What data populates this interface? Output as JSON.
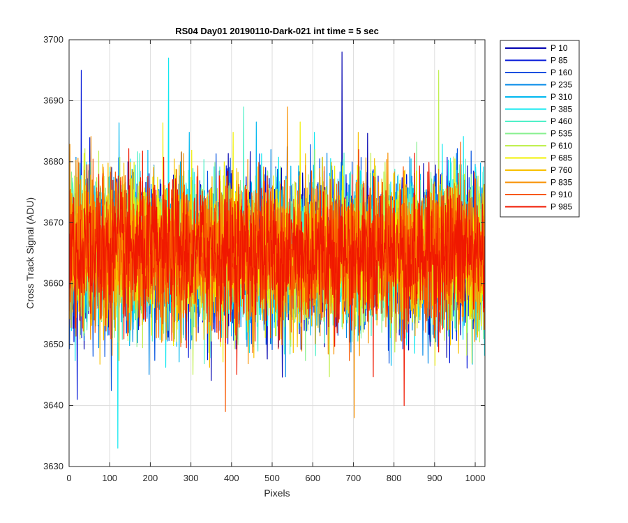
{
  "chart_data": {
    "type": "line",
    "title": "RS04 Day01 20190110-Dark-021 int time = 5 sec",
    "xlabel": "Pixels",
    "ylabel": "Cross Track Signal (ADU)",
    "xlim": [
      0,
      1024
    ],
    "ylim": [
      3630,
      3700
    ],
    "xticks": [
      0,
      100,
      200,
      300,
      400,
      500,
      600,
      700,
      800,
      900,
      1000
    ],
    "yticks": [
      3630,
      3640,
      3650,
      3660,
      3670,
      3680,
      3690,
      3700
    ],
    "grid": true,
    "legend_position": "outside-top-right",
    "noise_mean": 3665,
    "noise_std": 6,
    "series": [
      {
        "name": "P 10",
        "color": "#0000b0"
      },
      {
        "name": "P 85",
        "color": "#0014d8"
      },
      {
        "name": "P 160",
        "color": "#0050e0"
      },
      {
        "name": "P 235",
        "color": "#0088e8"
      },
      {
        "name": "P 310",
        "color": "#00b8f0"
      },
      {
        "name": "P 385",
        "color": "#10e8f0"
      },
      {
        "name": "P 460",
        "color": "#50f0c8"
      },
      {
        "name": "P 535",
        "color": "#88f090"
      },
      {
        "name": "P 610",
        "color": "#c0f050"
      },
      {
        "name": "P 685",
        "color": "#f0f000"
      },
      {
        "name": "P 760",
        "color": "#f8c000"
      },
      {
        "name": "P 835",
        "color": "#f89000"
      },
      {
        "name": "P 910",
        "color": "#f85800"
      },
      {
        "name": "P 985",
        "color": "#f01800"
      }
    ],
    "annotated_extremes": [
      {
        "series": "P 85",
        "x": 30,
        "y": 3695
      },
      {
        "series": "P 385",
        "x": 245,
        "y": 3697
      },
      {
        "series": "P 10",
        "x": 672,
        "y": 3698
      },
      {
        "series": "P 610",
        "x": 910,
        "y": 3695
      },
      {
        "series": "P 385",
        "x": 120,
        "y": 3633
      },
      {
        "series": "P 835",
        "x": 702,
        "y": 3638
      },
      {
        "series": "P 910",
        "x": 385,
        "y": 3639
      },
      {
        "series": "P 985",
        "x": 825,
        "y": 3640
      }
    ]
  }
}
